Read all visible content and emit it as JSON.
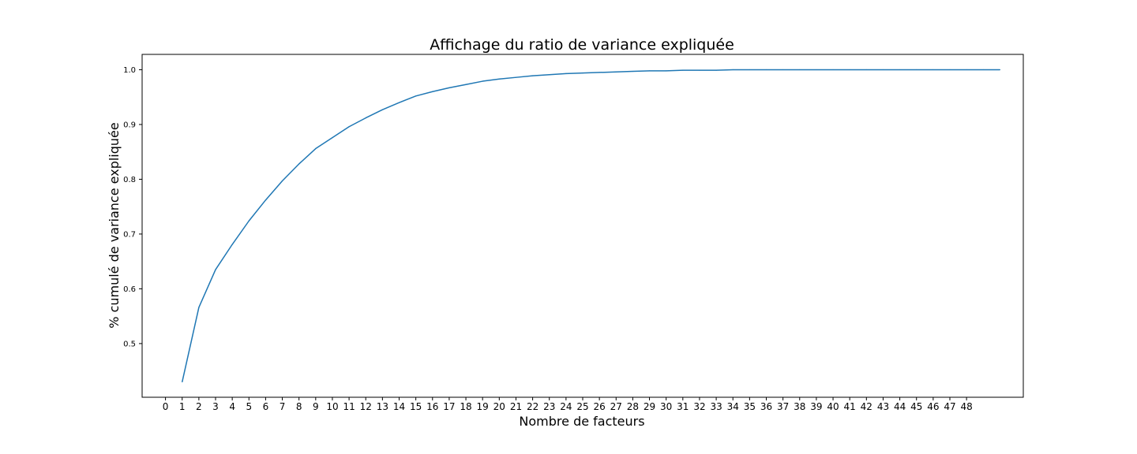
{
  "chart_data": {
    "type": "line",
    "title": "Affichage du ratio de variance expliquée",
    "xlabel": "Nombre de facteurs",
    "ylabel": "% cumulé de variance expliquée",
    "xlim": [
      -1.4,
      51.4
    ],
    "ylim": [
      0.402,
      1.028
    ],
    "xticks": [
      0,
      1,
      2,
      3,
      4,
      5,
      6,
      7,
      8,
      9,
      10,
      11,
      12,
      13,
      14,
      15,
      16,
      17,
      18,
      19,
      20,
      21,
      22,
      23,
      24,
      25,
      26,
      27,
      28,
      29,
      30,
      31,
      32,
      33,
      34,
      35,
      36,
      37,
      38,
      39,
      40,
      41,
      42,
      43,
      44,
      45,
      46,
      47,
      48
    ],
    "xtick_labels": [
      "0",
      "1",
      "2",
      "3",
      "4",
      "5",
      "6",
      "7",
      "8",
      "9",
      "10",
      "11",
      "12",
      "13",
      "14",
      "15",
      "16",
      "17",
      "18",
      "19",
      "20",
      "21",
      "22",
      "23",
      "24",
      "25",
      "26",
      "27",
      "28",
      "29",
      "30",
      "31",
      "32",
      "33",
      "34",
      "35",
      "36",
      "37",
      "38",
      "39",
      "40",
      "41",
      "42",
      "43",
      "44",
      "45",
      "46",
      "47",
      "48"
    ],
    "yticks": [
      0.5,
      0.6,
      0.7,
      0.8,
      0.9,
      1.0
    ],
    "ytick_labels": [
      "0.5",
      "0.6",
      "0.7",
      "0.8",
      "0.9",
      "1.0"
    ],
    "grid": false,
    "series": [
      {
        "color": "#1f77b4",
        "x": [
          1,
          2,
          3,
          4,
          5,
          6,
          7,
          8,
          9,
          10,
          11,
          12,
          13,
          14,
          15,
          16,
          17,
          18,
          19,
          20,
          21,
          22,
          23,
          24,
          25,
          26,
          27,
          28,
          29,
          30,
          31,
          32,
          33,
          34,
          35,
          36,
          37,
          38,
          39,
          40,
          41,
          42,
          43,
          44,
          45,
          46,
          47,
          48,
          49,
          50
        ],
        "y": [
          0.43,
          0.566,
          0.635,
          0.681,
          0.724,
          0.762,
          0.797,
          0.828,
          0.856,
          0.876,
          0.896,
          0.912,
          0.927,
          0.94,
          0.952,
          0.96,
          0.967,
          0.973,
          0.979,
          0.983,
          0.986,
          0.989,
          0.991,
          0.993,
          0.994,
          0.995,
          0.996,
          0.997,
          0.998,
          0.998,
          0.999,
          0.999,
          0.999,
          1.0,
          1.0,
          1.0,
          1.0,
          1.0,
          1.0,
          1.0,
          1.0,
          1.0,
          1.0,
          1.0,
          1.0,
          1.0,
          1.0,
          1.0,
          1.0,
          1.0
        ]
      }
    ]
  }
}
